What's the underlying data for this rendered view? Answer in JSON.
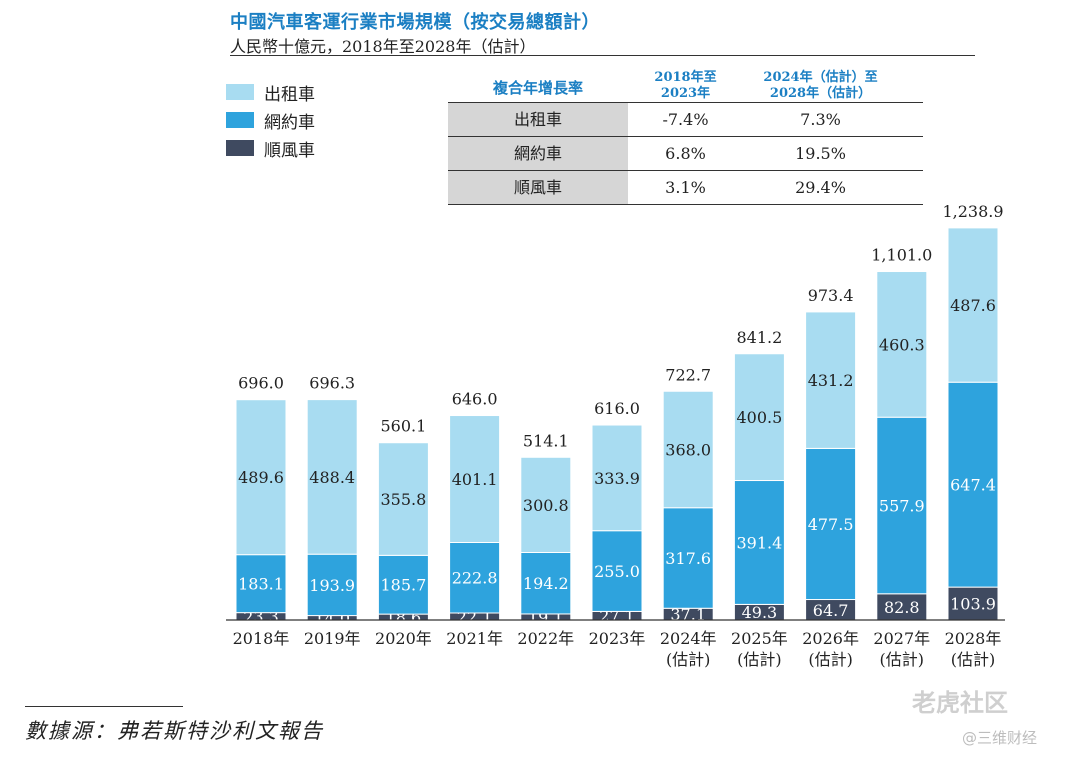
{
  "header": {
    "title": "中國汽車客運行業市場規模（按交易總額計）",
    "subtitle": "人民幣十億元，2018年至2028年（估計）"
  },
  "legend": [
    {
      "label": "出租車",
      "color": "#a8dcf1"
    },
    {
      "label": "網約車",
      "color": "#2ea3dd"
    },
    {
      "label": "順風車",
      "color": "#3f4a60"
    }
  ],
  "cagr_table": {
    "header": [
      "複合年增長率",
      "2018年至\n2023年",
      "2024年（估計）至\n2028年（估計）"
    ],
    "rows": [
      {
        "name": "出租車",
        "v1": "-7.4%",
        "v2": "7.3%"
      },
      {
        "name": "網約車",
        "v1": "6.8%",
        "v2": "19.5%"
      },
      {
        "name": "順風車",
        "v1": "3.1%",
        "v2": "29.4%"
      }
    ]
  },
  "chart_data": {
    "type": "bar",
    "stacked": true,
    "categories": [
      "2018年",
      "2019年",
      "2020年",
      "2021年",
      "2022年",
      "2023年",
      "2024年\n(估計)",
      "2025年\n(估計)",
      "2026年\n(估計)",
      "2027年\n(估計)",
      "2028年\n(估計)"
    ],
    "series": [
      {
        "name": "順風車",
        "color": "#3f4a60",
        "values": [
          23.3,
          14.0,
          18.6,
          22.1,
          19.1,
          27.1,
          37.1,
          49.3,
          64.7,
          82.8,
          103.9
        ]
      },
      {
        "name": "網約車",
        "color": "#2ea3dd",
        "values": [
          183.1,
          193.9,
          185.7,
          222.8,
          194.2,
          255.0,
          317.6,
          391.4,
          477.5,
          557.9,
          647.4
        ]
      },
      {
        "name": "出租車",
        "color": "#a8dcf1",
        "values": [
          489.6,
          488.4,
          355.8,
          401.1,
          300.8,
          333.9,
          368.0,
          400.5,
          431.2,
          460.3,
          487.6
        ]
      }
    ],
    "totals": [
      "696.0",
      "696.3",
      "560.1",
      "646.0",
      "514.1",
      "616.0",
      "722.7",
      "841.2",
      "973.4",
      "1,101.0",
      "1,238.9"
    ]
  },
  "footer": {
    "source": "數據源：弗若斯特沙利文報告",
    "watermark1": "老虎社区",
    "watermark2": "@三维财经"
  }
}
